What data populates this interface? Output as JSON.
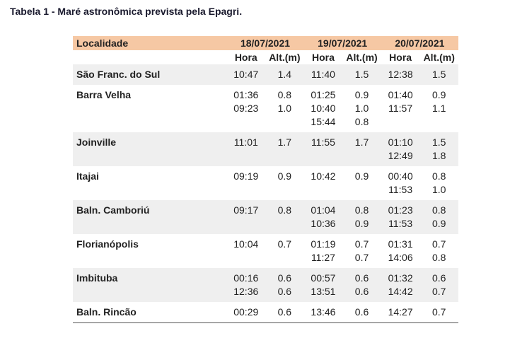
{
  "caption": "Tabela 1 - Maré astronômica prevista pela Epagri.",
  "table": {
    "header": [
      "Localidade",
      "18/07/2021",
      "19/07/2021",
      "20/07/2021"
    ],
    "subheader": [
      "Hora",
      "Alt.(m)",
      "Hora",
      "Alt.(m)",
      "Hora",
      "Alt.(m)"
    ],
    "rows": [
      {
        "name": "São Franc. do Sul",
        "days": [
          [
            [
              "10:47",
              "1.4"
            ]
          ],
          [
            [
              "11:40",
              "1.5"
            ]
          ],
          [
            [
              "12:38",
              "1.5"
            ]
          ]
        ]
      },
      {
        "name": "Barra Velha",
        "days": [
          [
            [
              "01:36",
              "0.8"
            ],
            [
              "09:23",
              "1.0"
            ]
          ],
          [
            [
              "01:25",
              "0.9"
            ],
            [
              "10:40",
              "1.0"
            ],
            [
              "15:44",
              "0.8"
            ]
          ],
          [
            [
              "01:40",
              "0.9"
            ],
            [
              "11:57",
              "1.1"
            ]
          ]
        ]
      },
      {
        "name": "Joinville",
        "days": [
          [
            [
              "11:01",
              "1.7"
            ]
          ],
          [
            [
              "11:55",
              "1.7"
            ]
          ],
          [
            [
              "01:10",
              "1.5"
            ],
            [
              "12:49",
              "1.8"
            ]
          ]
        ]
      },
      {
        "name": "Itajai",
        "days": [
          [
            [
              "09:19",
              "0.9"
            ]
          ],
          [
            [
              "10:42",
              "0.9"
            ]
          ],
          [
            [
              "00:40",
              "0.8"
            ],
            [
              "11:53",
              "1.0"
            ]
          ]
        ]
      },
      {
        "name": "Baln. Camboriú",
        "days": [
          [
            [
              "09:17",
              "0.8"
            ]
          ],
          [
            [
              "01:04",
              "0.8"
            ],
            [
              "10:36",
              "0.9"
            ]
          ],
          [
            [
              "01:23",
              "0.8"
            ],
            [
              "11:53",
              "0.9"
            ]
          ]
        ]
      },
      {
        "name": "Florianópolis",
        "days": [
          [
            [
              "10:04",
              "0.7"
            ]
          ],
          [
            [
              "01:19",
              "0.7"
            ],
            [
              "11:27",
              "0.7"
            ]
          ],
          [
            [
              "01:31",
              "0.7"
            ],
            [
              "14:06",
              "0.8"
            ]
          ]
        ]
      },
      {
        "name": "Imbituba",
        "days": [
          [
            [
              "00:16",
              "0.6"
            ],
            [
              "12:36",
              "0.6"
            ]
          ],
          [
            [
              "00:57",
              "0.6"
            ],
            [
              "13:51",
              "0.6"
            ]
          ],
          [
            [
              "01:32",
              "0.6"
            ],
            [
              "14:42",
              "0.7"
            ]
          ]
        ]
      },
      {
        "name": "Baln. Rincão",
        "days": [
          [
            [
              "00:29",
              "0.6"
            ]
          ],
          [
            [
              "13:46",
              "0.6"
            ]
          ],
          [
            [
              "14:27",
              "0.7"
            ]
          ]
        ]
      }
    ]
  }
}
